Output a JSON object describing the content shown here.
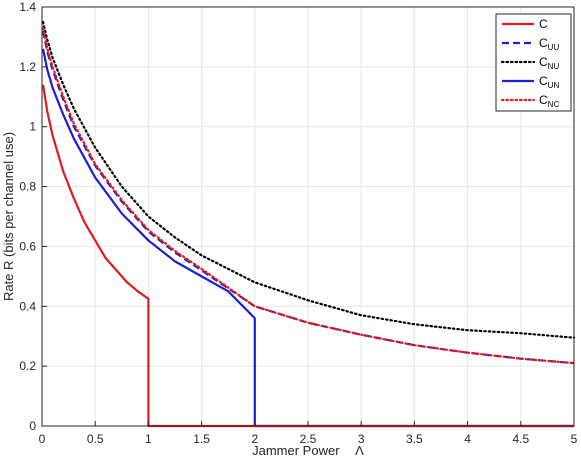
{
  "chart_data": {
    "type": "line",
    "xlabel": "Jammer Power",
    "xlabel_symbol": "Λ",
    "ylabel": "Rate R (bits per channel use)",
    "xlim": [
      0,
      5
    ],
    "ylim": [
      0,
      1.4
    ],
    "x_ticks": [
      "0",
      "0.5",
      "1",
      "1.5",
      "2",
      "2.5",
      "3",
      "3.5",
      "4",
      "4.5",
      "5"
    ],
    "y_ticks": [
      "0",
      "0.2",
      "0.4",
      "0.6",
      "0.8",
      "1",
      "1.2",
      "1.4"
    ],
    "grid": true,
    "legend_position": "top-right",
    "series": [
      {
        "name": "C",
        "base": "C",
        "sub": "",
        "color": "#e41a1c",
        "dash": "solid",
        "x": [
          0.01,
          0.05,
          0.1,
          0.2,
          0.3,
          0.4,
          0.5,
          0.6,
          0.7,
          0.8,
          0.9,
          1.0,
          1.0,
          1.5,
          2.0,
          2.5,
          3.0,
          3.5,
          4.0,
          4.5,
          5.0
        ],
        "y": [
          1.14,
          1.05,
          0.97,
          0.85,
          0.76,
          0.68,
          0.62,
          0.56,
          0.52,
          0.48,
          0.45,
          0.425,
          0,
          0,
          0,
          0,
          0,
          0,
          0,
          0,
          0
        ]
      },
      {
        "name": "C_UU",
        "base": "C",
        "sub": "UU",
        "color": "#1f1fd1",
        "dash": "dashed",
        "x": [
          0.01,
          0.05,
          0.1,
          0.2,
          0.3,
          0.5,
          0.75,
          1.0,
          1.25,
          1.5,
          2.0,
          2.5,
          3.0,
          3.5,
          4.0,
          4.5,
          5.0
        ],
        "y": [
          1.32,
          1.25,
          1.19,
          1.09,
          1.0,
          0.87,
          0.75,
          0.65,
          0.58,
          0.52,
          0.4,
          0.345,
          0.305,
          0.27,
          0.245,
          0.225,
          0.21
        ]
      },
      {
        "name": "C_NU",
        "base": "C",
        "sub": "NU",
        "color": "#000000",
        "dash": "dotted",
        "x": [
          0.01,
          0.05,
          0.1,
          0.2,
          0.3,
          0.5,
          0.75,
          1.0,
          1.25,
          1.5,
          2.0,
          2.5,
          3.0,
          3.5,
          4.0,
          4.5,
          5.0
        ],
        "y": [
          1.35,
          1.29,
          1.23,
          1.14,
          1.06,
          0.93,
          0.8,
          0.7,
          0.63,
          0.57,
          0.48,
          0.42,
          0.37,
          0.34,
          0.32,
          0.31,
          0.295
        ]
      },
      {
        "name": "C_UN",
        "base": "C",
        "sub": "UN",
        "color": "#1f1fd1",
        "dash": "solid",
        "x": [
          0.01,
          0.05,
          0.1,
          0.2,
          0.3,
          0.5,
          0.75,
          1.0,
          1.25,
          1.5,
          1.75,
          2.0,
          2.0,
          2.5,
          3.0,
          3.5,
          4.0,
          4.5,
          5.0
        ],
        "y": [
          1.26,
          1.19,
          1.13,
          1.04,
          0.96,
          0.83,
          0.71,
          0.62,
          0.55,
          0.5,
          0.45,
          0.36,
          0,
          0,
          0,
          0,
          0,
          0,
          0
        ]
      },
      {
        "name": "C_NC",
        "base": "C",
        "sub": "NC",
        "color": "#e41a1c",
        "dash": "dotted",
        "x": [
          0.01,
          0.05,
          0.1,
          0.2,
          0.3,
          0.5,
          0.75,
          1.0,
          1.25,
          1.5,
          2.0,
          2.5,
          3.0,
          3.5,
          4.0,
          4.5,
          5.0
        ],
        "y": [
          1.33,
          1.26,
          1.2,
          1.1,
          1.01,
          0.875,
          0.755,
          0.655,
          0.585,
          0.525,
          0.4,
          0.345,
          0.305,
          0.27,
          0.245,
          0.225,
          0.21
        ]
      }
    ]
  }
}
